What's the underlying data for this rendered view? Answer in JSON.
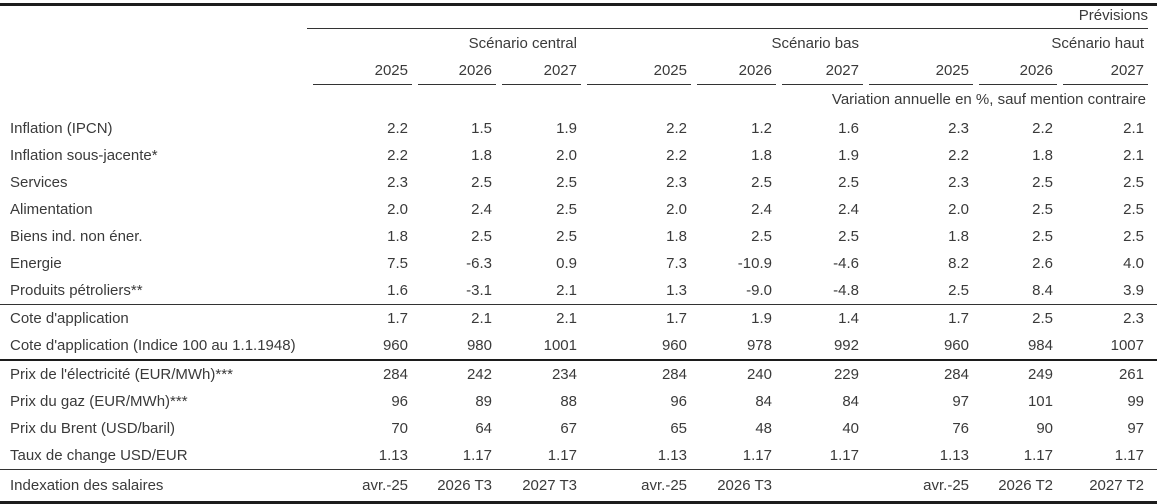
{
  "header": {
    "previsions": "Prévisions",
    "scenarios": [
      "Scénario central",
      "Scénario bas",
      "Scénario haut"
    ],
    "years": [
      "2025",
      "2026",
      "2027"
    ],
    "unit_note": "Variation annuelle en %, sauf mention contraire"
  },
  "colors": {
    "text": "#3a3a3a",
    "line_strong": "#1c1c1c",
    "line_light": "#333333"
  },
  "table": {
    "groups": [
      {
        "name": "inflation",
        "rows": [
          {
            "label": "Inflation (IPCN)",
            "values": [
              "2.2",
              "1.5",
              "1.9",
              "2.2",
              "1.2",
              "1.6",
              "2.3",
              "2.2",
              "2.1"
            ]
          },
          {
            "label": "Inflation sous-jacente*",
            "values": [
              "2.2",
              "1.8",
              "2.0",
              "2.2",
              "1.8",
              "1.9",
              "2.2",
              "1.8",
              "2.1"
            ]
          },
          {
            "label": "Services",
            "values": [
              "2.3",
              "2.5",
              "2.5",
              "2.3",
              "2.5",
              "2.5",
              "2.3",
              "2.5",
              "2.5"
            ]
          },
          {
            "label": "Alimentation",
            "values": [
              "2.0",
              "2.4",
              "2.5",
              "2.0",
              "2.4",
              "2.4",
              "2.0",
              "2.5",
              "2.5"
            ]
          },
          {
            "label": "Biens ind. non éner.",
            "values": [
              "1.8",
              "2.5",
              "2.5",
              "1.8",
              "2.5",
              "2.5",
              "1.8",
              "2.5",
              "2.5"
            ]
          },
          {
            "label": "Energie",
            "values": [
              "7.5",
              "-6.3",
              "0.9",
              "7.3",
              "-10.9",
              "-4.6",
              "8.2",
              "2.6",
              "4.0"
            ]
          },
          {
            "label": "Produits pétroliers**",
            "values": [
              "1.6",
              "-3.1",
              "2.1",
              "1.3",
              "-9.0",
              "-4.8",
              "2.5",
              "8.4",
              "3.9"
            ]
          }
        ]
      },
      {
        "name": "cote-application",
        "rows": [
          {
            "label": "Cote d'application",
            "values": [
              "1.7",
              "2.1",
              "2.1",
              "1.7",
              "1.9",
              "1.4",
              "1.7",
              "2.5",
              "2.3"
            ]
          },
          {
            "label": "Cote d'application (Indice 100 au 1.1.1948)",
            "values": [
              "960",
              "980",
              "1001",
              "960",
              "978",
              "992",
              "960",
              "984",
              "1007"
            ]
          }
        ]
      },
      {
        "name": "prix-energie",
        "rows": [
          {
            "label": "Prix de l'électricité (EUR/MWh)***",
            "values": [
              "284",
              "242",
              "234",
              "284",
              "240",
              "229",
              "284",
              "249",
              "261"
            ]
          },
          {
            "label": "Prix du gaz (EUR/MWh)***",
            "values": [
              "96",
              "89",
              "88",
              "96",
              "84",
              "84",
              "97",
              "101",
              "99"
            ]
          },
          {
            "label": "Prix du Brent (USD/baril)",
            "values": [
              "70",
              "64",
              "67",
              "65",
              "48",
              "40",
              "76",
              "90",
              "97"
            ]
          },
          {
            "label": "Taux de change USD/EUR",
            "values": [
              "1.13",
              "1.17",
              "1.17",
              "1.13",
              "1.17",
              "1.17",
              "1.13",
              "1.17",
              "1.17"
            ]
          }
        ]
      },
      {
        "name": "indexation",
        "rows": [
          {
            "label": "Indexation des salaires",
            "values": [
              "avr.-25",
              "2026 T3",
              "2027 T3",
              "avr.-25",
              "2026 T3",
              "",
              "avr.-25",
              "2026 T2",
              "2027 T2"
            ]
          }
        ]
      }
    ]
  }
}
